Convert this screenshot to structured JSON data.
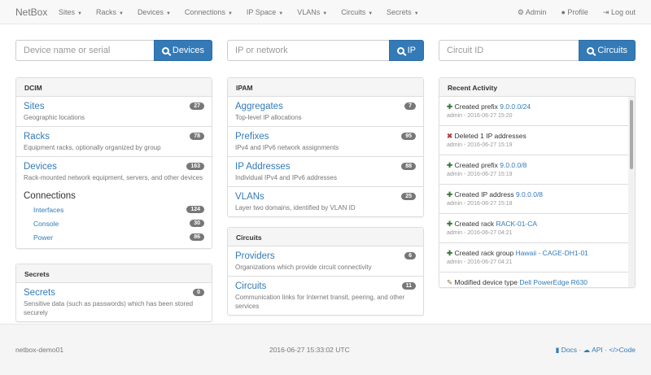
{
  "nav": {
    "brand": "NetBox",
    "menus": [
      "Sites",
      "Racks",
      "Devices",
      "Connections",
      "IP Space",
      "VLANs",
      "Circuits",
      "Secrets"
    ],
    "admin": "Admin",
    "profile": "Profile",
    "logout": "Log out"
  },
  "search": [
    {
      "placeholder": "Device name or serial",
      "button": "Devices"
    },
    {
      "placeholder": "IP or network",
      "button": "IP"
    },
    {
      "placeholder": "Circuit ID",
      "button": "Circuits"
    }
  ],
  "dcim": {
    "title": "DCIM",
    "items": [
      {
        "title": "Sites",
        "desc": "Geographic locations",
        "count": "27"
      },
      {
        "title": "Racks",
        "desc": "Equipment racks, optionally organized by group",
        "count": "78"
      },
      {
        "title": "Devices",
        "desc": "Rack-mounted network equipment, servers, and other devices",
        "count": "163"
      }
    ],
    "connections": {
      "title": "Connections",
      "items": [
        {
          "label": "Interfaces",
          "count": "124"
        },
        {
          "label": "Console",
          "count": "30"
        },
        {
          "label": "Power",
          "count": "86"
        }
      ]
    }
  },
  "secrets": {
    "title": "Secrets",
    "items": [
      {
        "title": "Secrets",
        "desc": "Sensitive data (such as passwords) which has been stored securely",
        "count": "0"
      }
    ]
  },
  "ipam": {
    "title": "IPAM",
    "items": [
      {
        "title": "Aggregates",
        "desc": "Top-level IP allocations",
        "count": "7"
      },
      {
        "title": "Prefixes",
        "desc": "IPv4 and IPv6 network assignments",
        "count": "95"
      },
      {
        "title": "IP Addresses",
        "desc": "Individual IPv4 and IPv6 addresses",
        "count": "88"
      },
      {
        "title": "VLANs",
        "desc": "Layer two domains, identified by VLAN ID",
        "count": "25"
      }
    ]
  },
  "circuits": {
    "title": "Circuits",
    "items": [
      {
        "title": "Providers",
        "desc": "Organizations which provide circuit connectivity",
        "count": "6"
      },
      {
        "title": "Circuits",
        "desc": "Communication links for Internet transit, peering, and other services",
        "count": "11"
      }
    ]
  },
  "activity": {
    "title": "Recent Activity",
    "items": [
      {
        "icon": "plus",
        "action": "Created prefix",
        "link": "9.0.0.0/24",
        "meta": "admin - 2016-06-27 15:20"
      },
      {
        "icon": "x",
        "action": "Deleted 1 IP addresses",
        "link": "",
        "meta": "admin - 2016-06-27 15:19"
      },
      {
        "icon": "plus",
        "action": "Created prefix",
        "link": "9.0.0.0/8",
        "meta": "admin - 2016-06-27 15:19"
      },
      {
        "icon": "plus",
        "action": "Created IP address",
        "link": "9.0.0.0/8",
        "meta": "admin - 2016-06-27 15:18"
      },
      {
        "icon": "plus",
        "action": "Created rack",
        "link": "RACK-01-CA",
        "meta": "admin - 2016-06-27 04:21"
      },
      {
        "icon": "plus",
        "action": "Created rack group",
        "link": "Hawaii - CAGE-DH1-01",
        "meta": "admin - 2016-06-27 04:21"
      },
      {
        "icon": "pencil",
        "action": "Modified device type",
        "link": "Dell PowerEdge R630",
        "meta": ""
      }
    ]
  },
  "footer": {
    "hostname": "netbox-demo01",
    "time": "2016-06-27 15:33:02 UTC",
    "docs": "Docs",
    "api": "API",
    "code": "Code",
    "sep": "·"
  }
}
